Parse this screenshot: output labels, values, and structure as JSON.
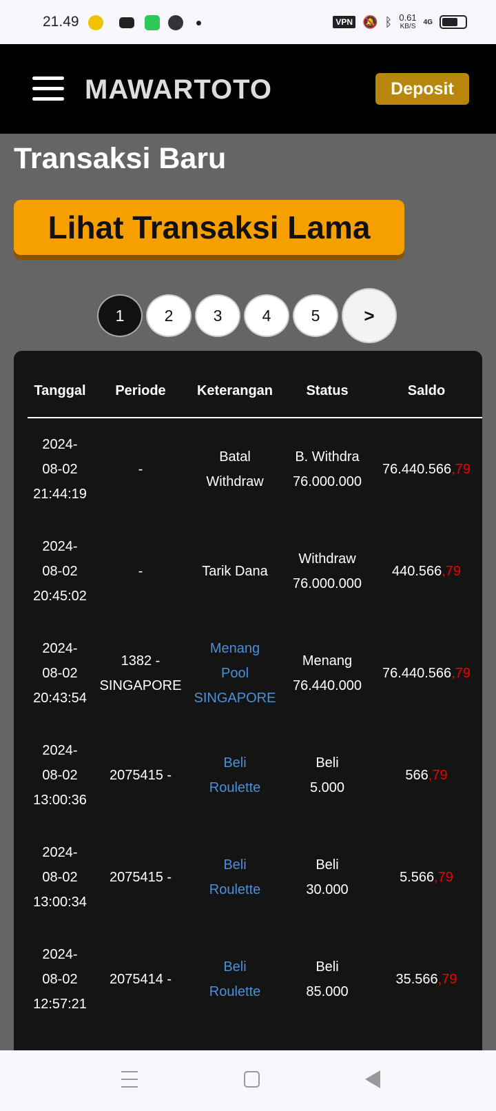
{
  "status_bar": {
    "time": "21.49",
    "vpn": "VPN",
    "speed": "0.61",
    "speed_unit": "KB/S",
    "network": "4G"
  },
  "header": {
    "logo": "MAWARTOTO",
    "deposit": "Deposit"
  },
  "page": {
    "title": "Transaksi Baru",
    "old_button": "Lihat Transaksi Lama"
  },
  "pagination": {
    "pages": [
      "1",
      "2",
      "3",
      "4",
      "5"
    ],
    "next": ">",
    "active": "1"
  },
  "table": {
    "columns": [
      "Tanggal",
      "Periode",
      "Keterangan",
      "Status",
      "Saldo"
    ],
    "rows": [
      {
        "date": [
          "2024-",
          "08-02",
          "21:44:19"
        ],
        "periode": [
          "-"
        ],
        "ket": [
          "Batal",
          "Withdraw"
        ],
        "ket_link": false,
        "status": [
          "B. Withdra",
          "76.000.000"
        ],
        "saldo": "76.440.566",
        "saldo_dec": ",79"
      },
      {
        "date": [
          "2024-",
          "08-02",
          "20:45:02"
        ],
        "periode": [
          "-"
        ],
        "ket": [
          "Tarik Dana"
        ],
        "ket_link": false,
        "status": [
          "Withdraw",
          "76.000.000"
        ],
        "saldo": "440.566",
        "saldo_dec": ",79"
      },
      {
        "date": [
          "2024-",
          "08-02",
          "20:43:54"
        ],
        "periode": [
          "1382 -",
          "SINGAPORE"
        ],
        "ket": [
          "Menang",
          "Pool",
          "SINGAPORE"
        ],
        "ket_link": true,
        "status": [
          "Menang",
          "76.440.000"
        ],
        "saldo": "76.440.566",
        "saldo_dec": ",79"
      },
      {
        "date": [
          "2024-",
          "08-02",
          "13:00:36"
        ],
        "periode": [
          "2075415 -"
        ],
        "ket": [
          "Beli",
          "Roulette"
        ],
        "ket_link": true,
        "status": [
          "Beli",
          "5.000"
        ],
        "saldo": "566",
        "saldo_dec": ",79"
      },
      {
        "date": [
          "2024-",
          "08-02",
          "13:00:34"
        ],
        "periode": [
          "2075415 -"
        ],
        "ket": [
          "Beli",
          "Roulette"
        ],
        "ket_link": true,
        "status": [
          "Beli",
          "30.000"
        ],
        "saldo": "5.566",
        "saldo_dec": ",79"
      },
      {
        "date": [
          "2024-",
          "08-02",
          "12:57:21"
        ],
        "periode": [
          "2075414 -"
        ],
        "ket": [
          "Beli",
          "Roulette"
        ],
        "ket_link": true,
        "status": [
          "Beli",
          "85.000"
        ],
        "saldo": "35.566",
        "saldo_dec": ",79"
      }
    ]
  },
  "colors": {
    "accent": "#f59f00",
    "deposit": "#b8860b",
    "link": "#4a90d9",
    "decimal": "#e00000"
  }
}
